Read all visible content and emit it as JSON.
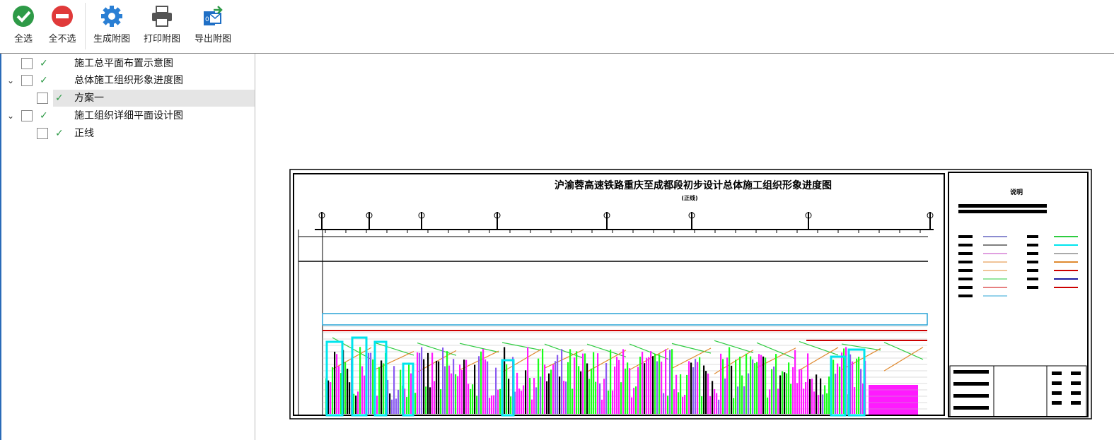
{
  "toolbar": {
    "buttons": [
      "全选",
      "全不选",
      "生成附图",
      "打印附图",
      "导出附图"
    ]
  },
  "tree": {
    "nodes": [
      {
        "label": "施工总平面布置示意图"
      },
      {
        "label": "总体施工组织形象进度图",
        "children": [
          {
            "label": "方案一"
          }
        ]
      },
      {
        "label": "施工组织详细平面设计图",
        "children": [
          {
            "label": "正线"
          }
        ]
      }
    ]
  },
  "preview": {
    "title": "沪渝蓉高速铁路重庆至成都段初步设计总体施工组织形象进度图",
    "subtitle": "(正线)",
    "legend_title": "说明"
  }
}
